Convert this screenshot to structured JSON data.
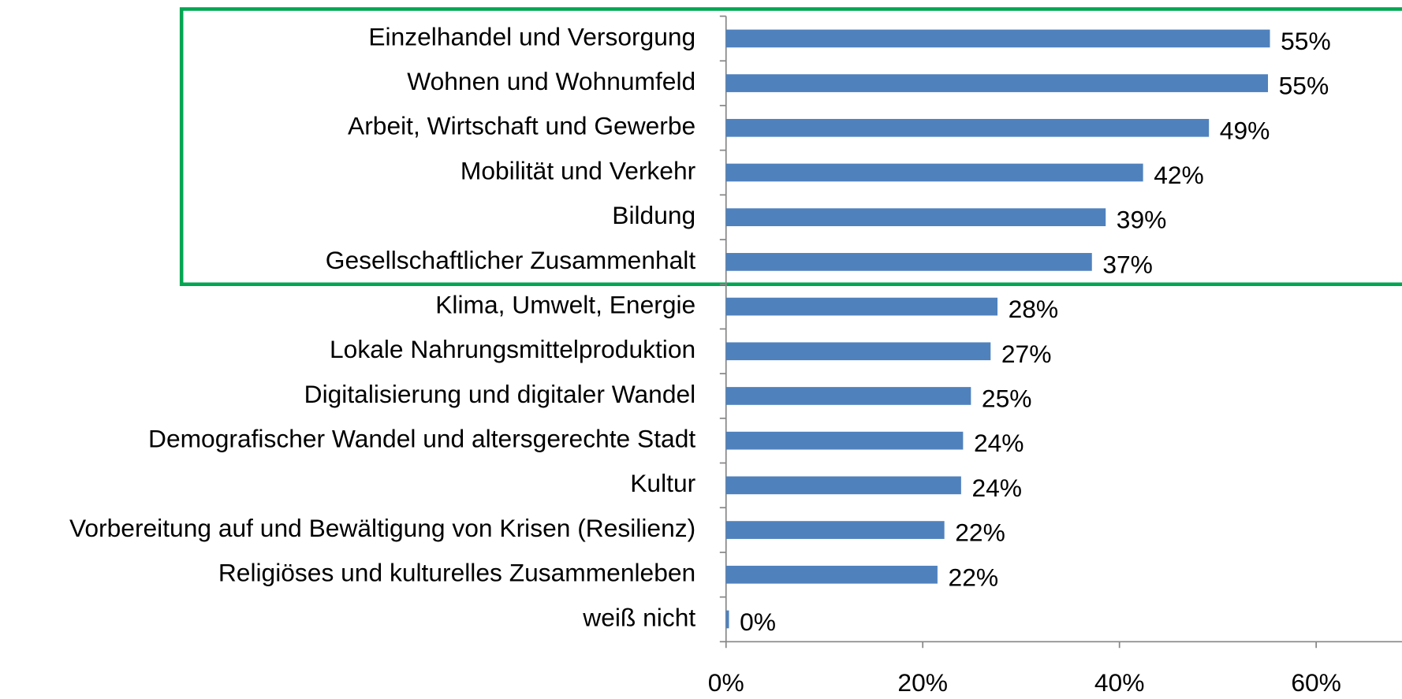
{
  "chart_data": {
    "type": "barh",
    "categories": [
      "Einzelhandel und Versorgung",
      "Wohnen und Wohnumfeld",
      "Arbeit, Wirtschaft und Gewerbe",
      "Mobilität und Verkehr",
      "Bildung",
      "Gesellschaftlicher Zusammenhalt",
      "Klima, Umwelt, Energie",
      "Lokale Nahrungsmittelproduktion",
      "Digitalisierung und digitaler Wandel",
      "Demografischer Wandel und altersgerechte Stadt",
      "Kultur",
      "Vorbereitung auf und Bewältigung von Krisen (Resilienz)",
      "Religiöses und kulturelles Zusammenleben",
      "weiß nicht"
    ],
    "values": [
      55.3,
      55.1,
      49.1,
      42.4,
      38.6,
      37.2,
      27.6,
      26.9,
      24.9,
      24.1,
      23.9,
      22.2,
      21.5,
      0.3
    ],
    "value_labels": [
      "55%",
      "55%",
      "49%",
      "42%",
      "39%",
      "37%",
      "28%",
      "27%",
      "25%",
      "24%",
      "24%",
      "22%",
      "22%",
      "0%"
    ],
    "color": "#4f81bd",
    "xlim": [
      0,
      60
    ],
    "xticks": [
      {
        "value": 0,
        "label": "0%"
      },
      {
        "value": 20,
        "label": "20%"
      },
      {
        "value": 40,
        "label": "40%"
      },
      {
        "value": 60,
        "label": "60%"
      }
    ]
  }
}
